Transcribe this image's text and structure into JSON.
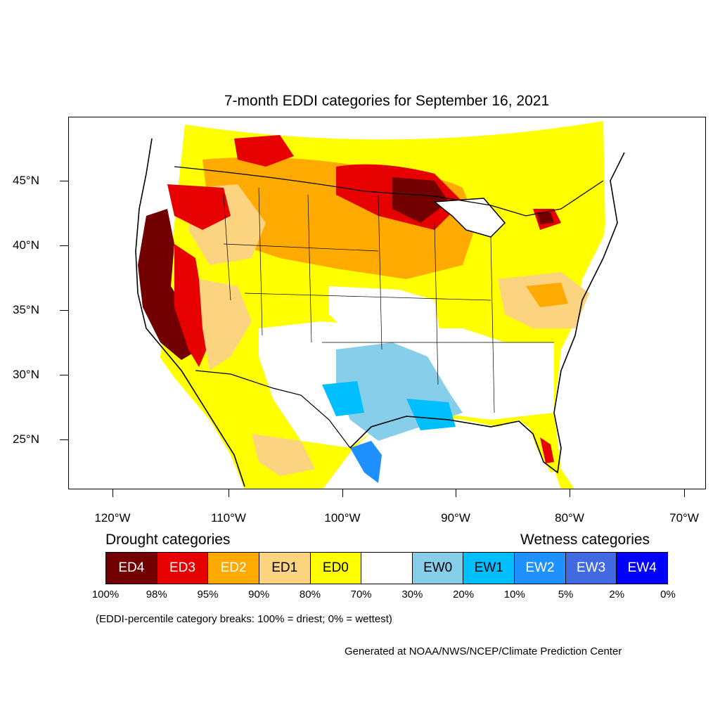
{
  "title": "7-month EDDI categories for September 16, 2021",
  "axes": {
    "lat_labels": [
      "45°N",
      "40°N",
      "35°N",
      "30°N",
      "25°N"
    ],
    "lon_labels": [
      "120°W",
      "110°W",
      "100°W",
      "90°W",
      "80°W",
      "70°W"
    ]
  },
  "legend": {
    "drought_heading": "Drought categories",
    "wetness_heading": "Wetness categories",
    "categories": [
      {
        "label": "ED4",
        "color": "#730000",
        "text_color": "#ffffff"
      },
      {
        "label": "ED3",
        "color": "#e60000",
        "text_color": "#ffffff"
      },
      {
        "label": "ED2",
        "color": "#ffaa00",
        "text_color": "#ffffff"
      },
      {
        "label": "ED1",
        "color": "#fcd37f",
        "text_color": "#000000"
      },
      {
        "label": "ED0",
        "color": "#ffff00",
        "text_color": "#000000"
      },
      {
        "label": "",
        "color": "#ffffff",
        "text_color": "#000000"
      },
      {
        "label": "EW0",
        "color": "#87ceeb",
        "text_color": "#000000"
      },
      {
        "label": "EW1",
        "color": "#00bfff",
        "text_color": "#000000"
      },
      {
        "label": "EW2",
        "color": "#1e90ff",
        "text_color": "#ffffff"
      },
      {
        "label": "EW3",
        "color": "#4169e1",
        "text_color": "#ffffff"
      },
      {
        "label": "EW4",
        "color": "#0000ff",
        "text_color": "#ffffff"
      }
    ],
    "percentile_breaks": [
      "100%",
      "98%",
      "95%",
      "90%",
      "80%",
      "70%",
      "30%",
      "20%",
      "10%",
      "5%",
      "2%",
      "0%"
    ]
  },
  "note": "(EDDI-percentile category breaks: 100% = driest; 0% = wettest)",
  "credit": "Generated at NOAA/NWS/NCEP/Climate Prediction Center"
}
